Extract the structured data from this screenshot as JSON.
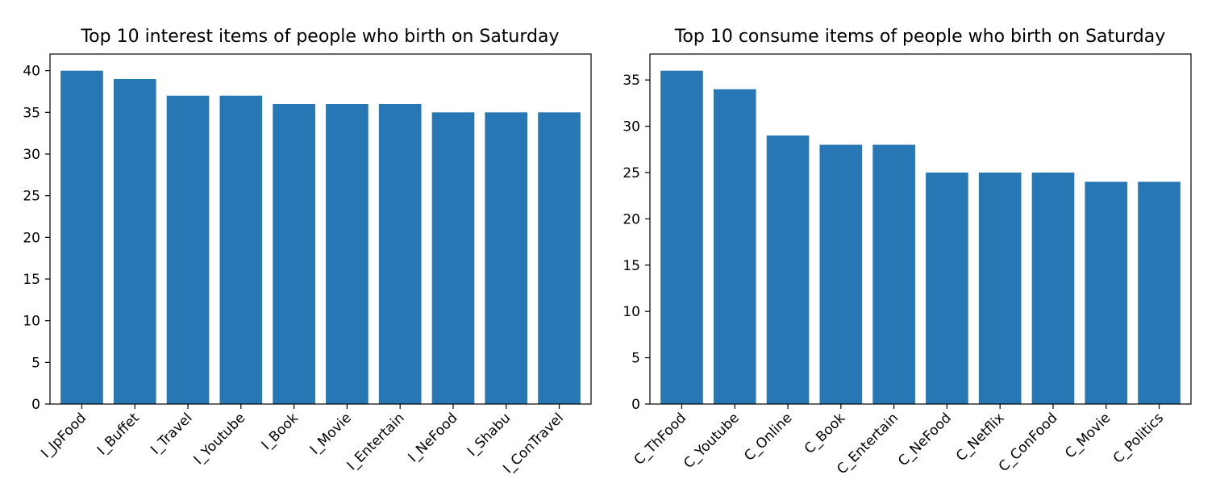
{
  "chart_data": [
    {
      "type": "bar",
      "title": "Top 10 interest items of people who birth on Saturday",
      "categories": [
        "I_JpFood",
        "I_Buffet",
        "I_Travel",
        "I_Youtube",
        "I_Book",
        "I_Movie",
        "I_Entertain",
        "I_NeFood",
        "I_Shabu",
        "I_ConTravel"
      ],
      "values": [
        40,
        39,
        37,
        37,
        36,
        36,
        36,
        35,
        35,
        35
      ],
      "xlabel": "",
      "ylabel": "",
      "ylim": [
        0,
        42
      ],
      "yticks": [
        0,
        5,
        10,
        15,
        20,
        25,
        30,
        35,
        40
      ],
      "color": "#2777b4",
      "grid": false
    },
    {
      "type": "bar",
      "title": "Top 10 consume items of people who birth on Saturday",
      "categories": [
        "C_ThFood",
        "C_Youtube",
        "C_Online",
        "C_Book",
        "C_Entertain",
        "C_NeFood",
        "C_Netflix",
        "C_ConFood",
        "C_Movie",
        "C_Politics"
      ],
      "values": [
        36,
        34,
        29,
        28,
        28,
        25,
        25,
        25,
        24,
        24
      ],
      "xlabel": "",
      "ylabel": "",
      "ylim": [
        0,
        37.8
      ],
      "yticks": [
        0,
        5,
        10,
        15,
        20,
        25,
        30,
        35
      ],
      "color": "#2777b4",
      "grid": false
    }
  ]
}
